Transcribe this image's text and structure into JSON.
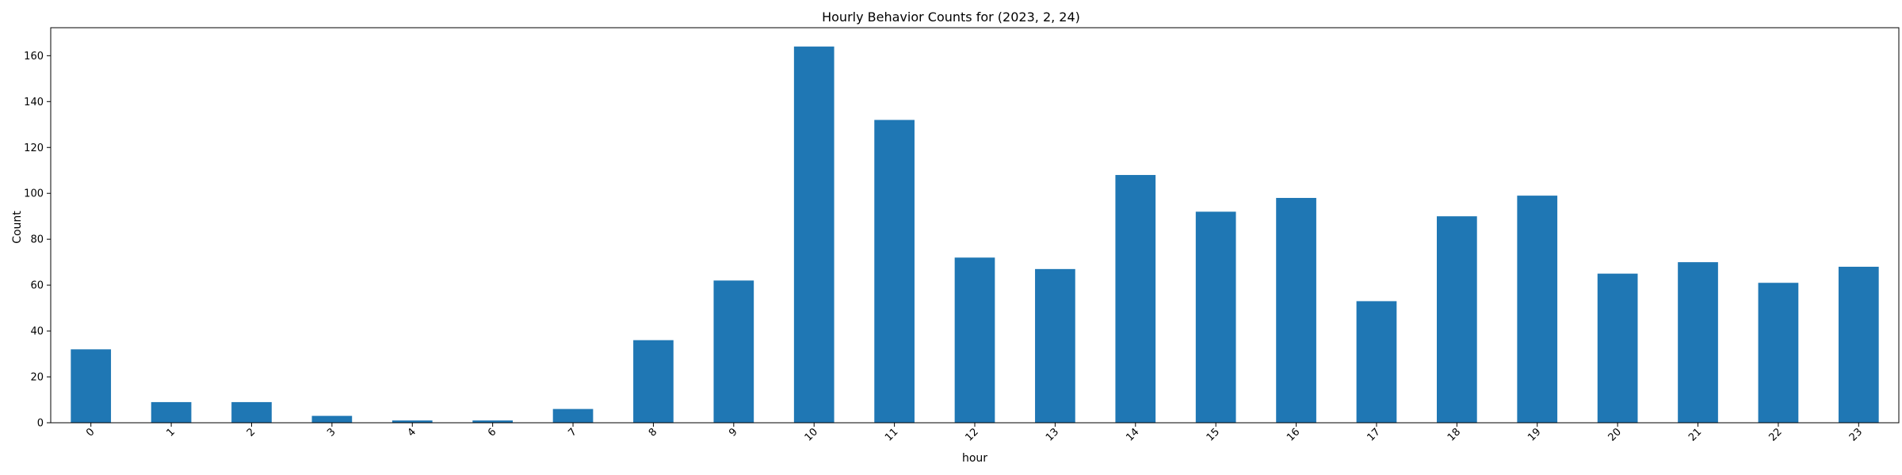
{
  "chart_data": {
    "type": "bar",
    "title": "Hourly Behavior Counts for (2023, 2, 24)",
    "xlabel": "hour",
    "ylabel": "Count",
    "categories": [
      "0",
      "1",
      "2",
      "3",
      "4",
      "6",
      "7",
      "8",
      "9",
      "10",
      "11",
      "12",
      "13",
      "14",
      "15",
      "16",
      "17",
      "18",
      "19",
      "20",
      "21",
      "22",
      "23"
    ],
    "values": [
      32,
      9,
      9,
      3,
      1,
      1,
      6,
      36,
      62,
      164,
      132,
      72,
      67,
      108,
      92,
      98,
      53,
      90,
      99,
      65,
      70,
      61,
      68
    ],
    "ylim": [
      0,
      172.2
    ],
    "yticks": [
      0,
      20,
      40,
      60,
      80,
      100,
      120,
      140,
      160
    ],
    "bar_color": "#1f77b4",
    "grid": false,
    "legend": "none",
    "xtick_rotation": 45
  }
}
